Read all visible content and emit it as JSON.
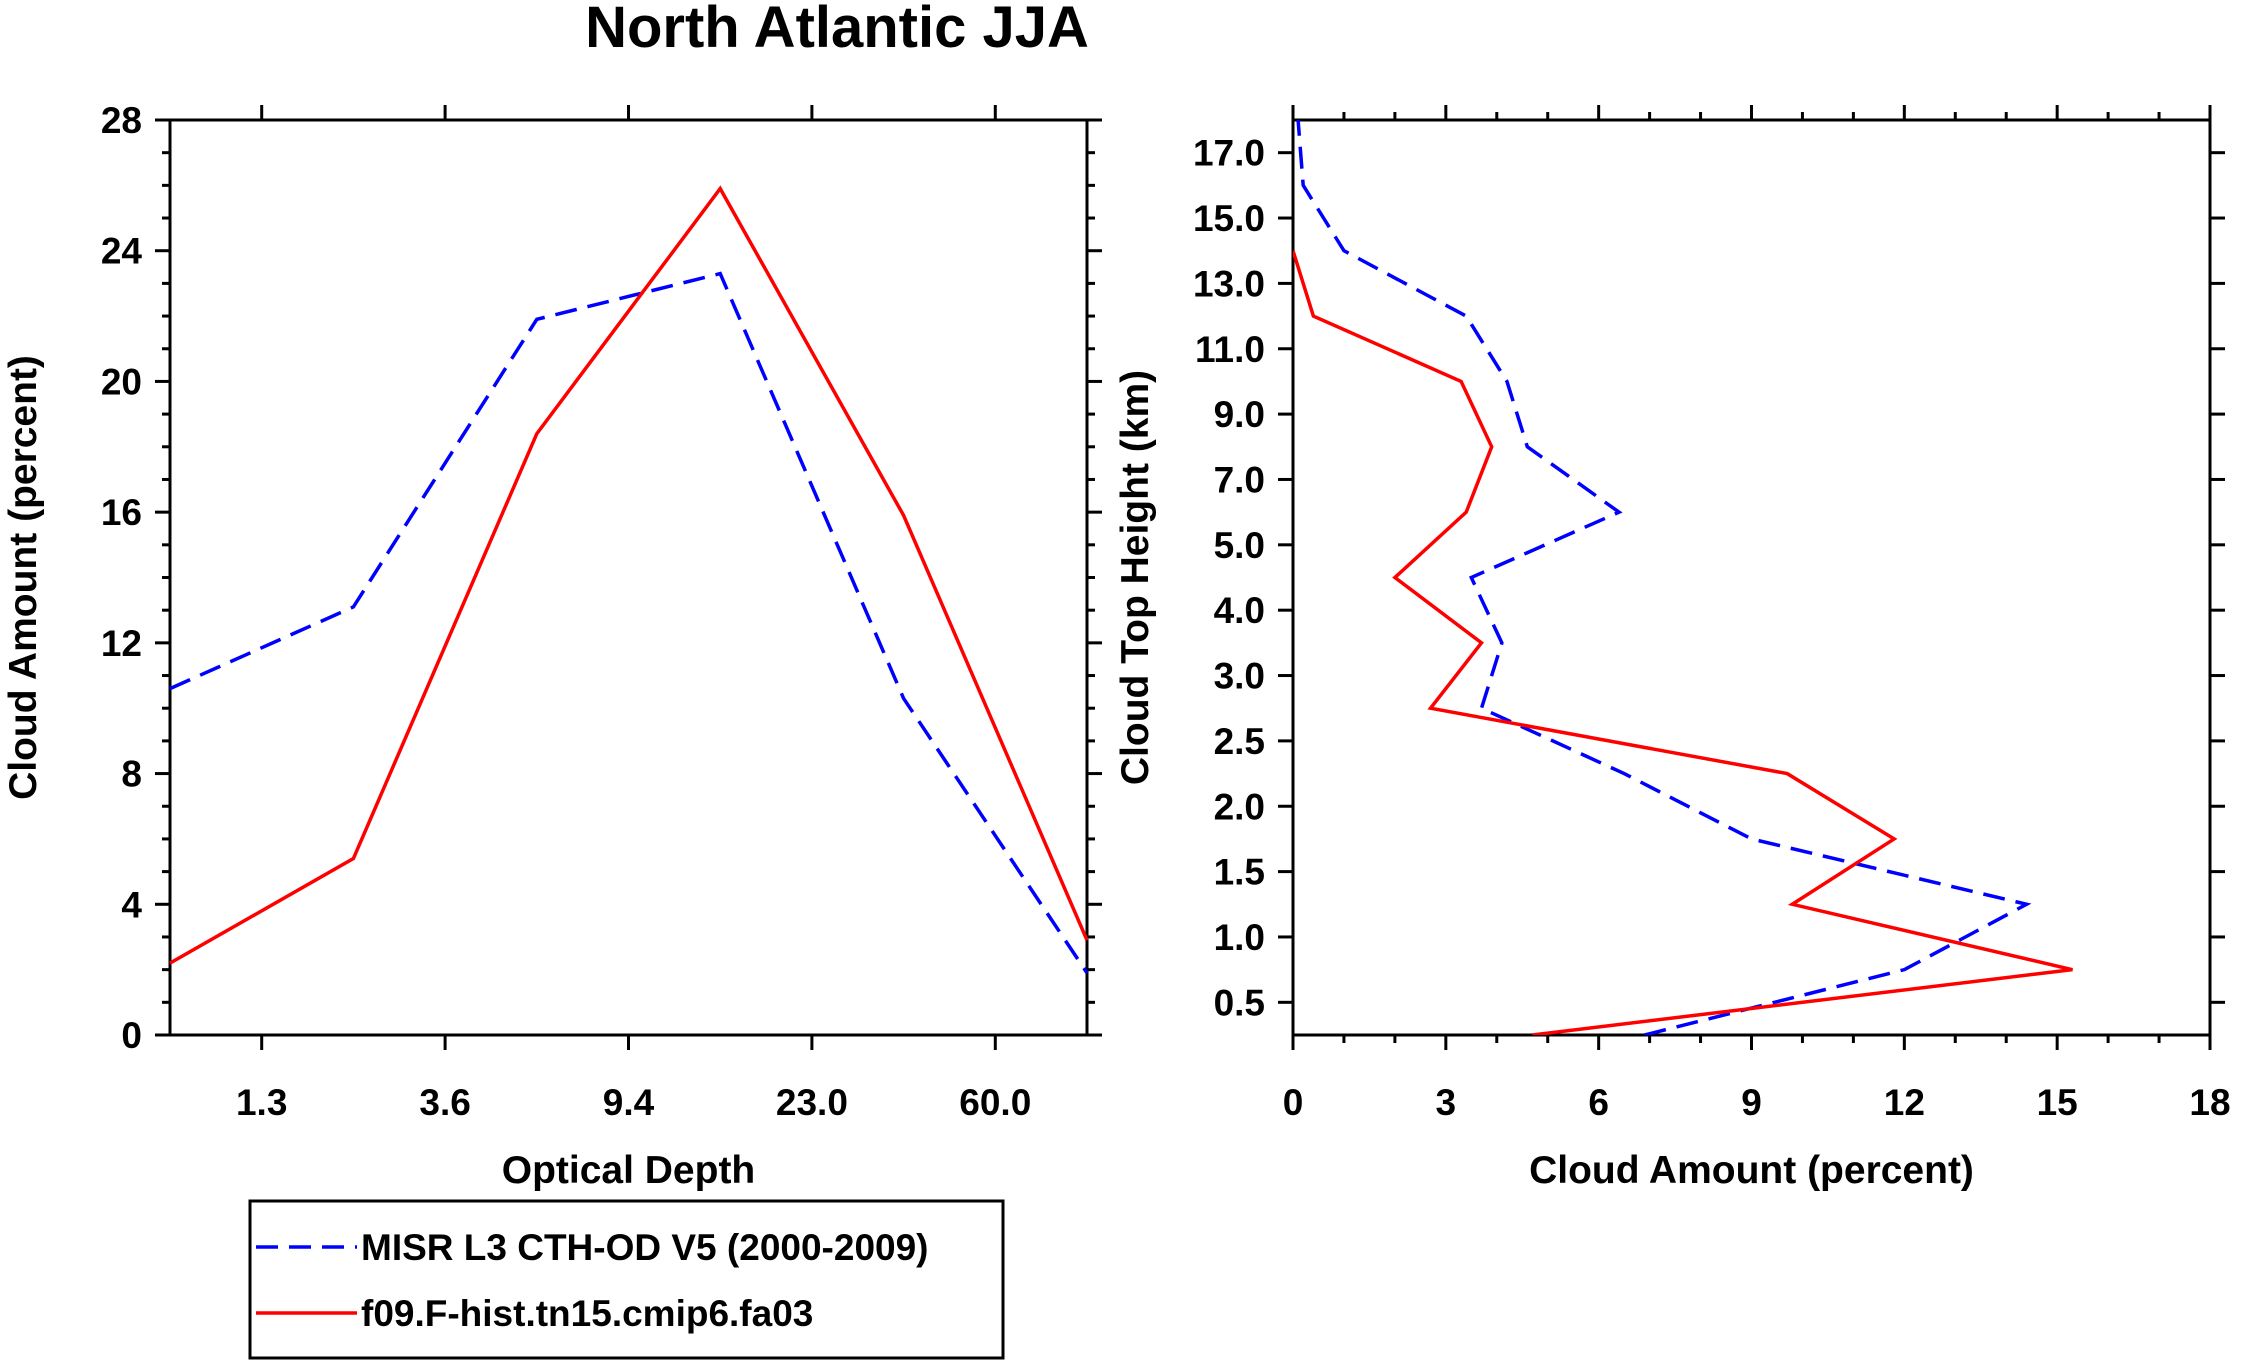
{
  "figure": {
    "title": "North Atlantic JJA",
    "colors": {
      "obs": "#0000ff",
      "model": "#ff0000",
      "axes": "#000000"
    }
  },
  "chart_data": [
    {
      "type": "line",
      "xlabel": "Optical Depth",
      "ylabel": "Cloud Amount (percent)",
      "x_index": [
        0,
        1,
        2,
        3,
        4,
        5
      ],
      "x_range": [
        0,
        5
      ],
      "xticks": [
        0.5,
        1.5,
        2.5,
        3.5,
        4.5
      ],
      "xtick_labels": [
        "1.3",
        "3.6",
        "9.4",
        "23.0",
        "60.0"
      ],
      "ylim": [
        0,
        28
      ],
      "yticks": [
        0,
        4,
        8,
        12,
        16,
        20,
        24,
        28
      ],
      "ytick_labels": [
        "0",
        "4",
        "8",
        "12",
        "16",
        "20",
        "24",
        "28"
      ],
      "series": [
        {
          "name": "MISR L3 CTH-OD V5 (2000-2009)",
          "style": "dashed",
          "values": [
            10.6,
            13.1,
            21.9,
            23.3,
            10.3,
            1.9
          ]
        },
        {
          "name": "f09.F-hist.tn15.cmip6.fa03",
          "style": "solid",
          "values": [
            2.2,
            5.4,
            18.4,
            25.9,
            15.9,
            2.9
          ]
        }
      ]
    },
    {
      "type": "line",
      "xlabel": "Cloud Amount (percent)",
      "ylabel": "Cloud Top Height (km)",
      "xlim": [
        0,
        18
      ],
      "xticks": [
        0,
        3,
        6,
        9,
        12,
        15,
        18
      ],
      "xtick_labels": [
        "0",
        "3",
        "6",
        "9",
        "12",
        "15",
        "18"
      ],
      "y_index": [
        0,
        1,
        2,
        3,
        4,
        5,
        6,
        7,
        8,
        9,
        10,
        11,
        12,
        13,
        14
      ],
      "y_range": [
        0,
        14
      ],
      "yticks": [
        0.5,
        1.5,
        2.5,
        3.5,
        4.5,
        5.5,
        6.5,
        7.5,
        8.5,
        9.5,
        10.5,
        11.5,
        12.5,
        13.5
      ],
      "ytick_labels": [
        "0.5",
        "1.0",
        "1.5",
        "2.0",
        "2.5",
        "3.0",
        "4.0",
        "5.0",
        "7.0",
        "9.0",
        "11.0",
        "13.0",
        "15.0",
        "17.0"
      ],
      "series": [
        {
          "name": "MISR L3 CTH-OD V5 (2000-2009)",
          "style": "dashed",
          "values": [
            6.9,
            12.0,
            14.4,
            9.0,
            6.5,
            3.7,
            4.1,
            3.5,
            6.4,
            4.6,
            4.2,
            3.4,
            1.0,
            0.2,
            0.1
          ]
        },
        {
          "name": "f09.F-hist.tn15.cmip6.fa03",
          "style": "solid",
          "values": [
            4.7,
            15.3,
            9.8,
            11.8,
            9.7,
            2.7,
            3.7,
            2.0,
            3.4,
            3.9,
            3.3,
            0.4,
            0.0,
            null,
            null
          ]
        }
      ]
    }
  ],
  "legend": {
    "items": [
      {
        "label": "MISR L3 CTH-OD V5 (2000-2009)",
        "style": "dashed"
      },
      {
        "label": "f09.F-hist.tn15.cmip6.fa03",
        "style": "solid"
      }
    ]
  }
}
